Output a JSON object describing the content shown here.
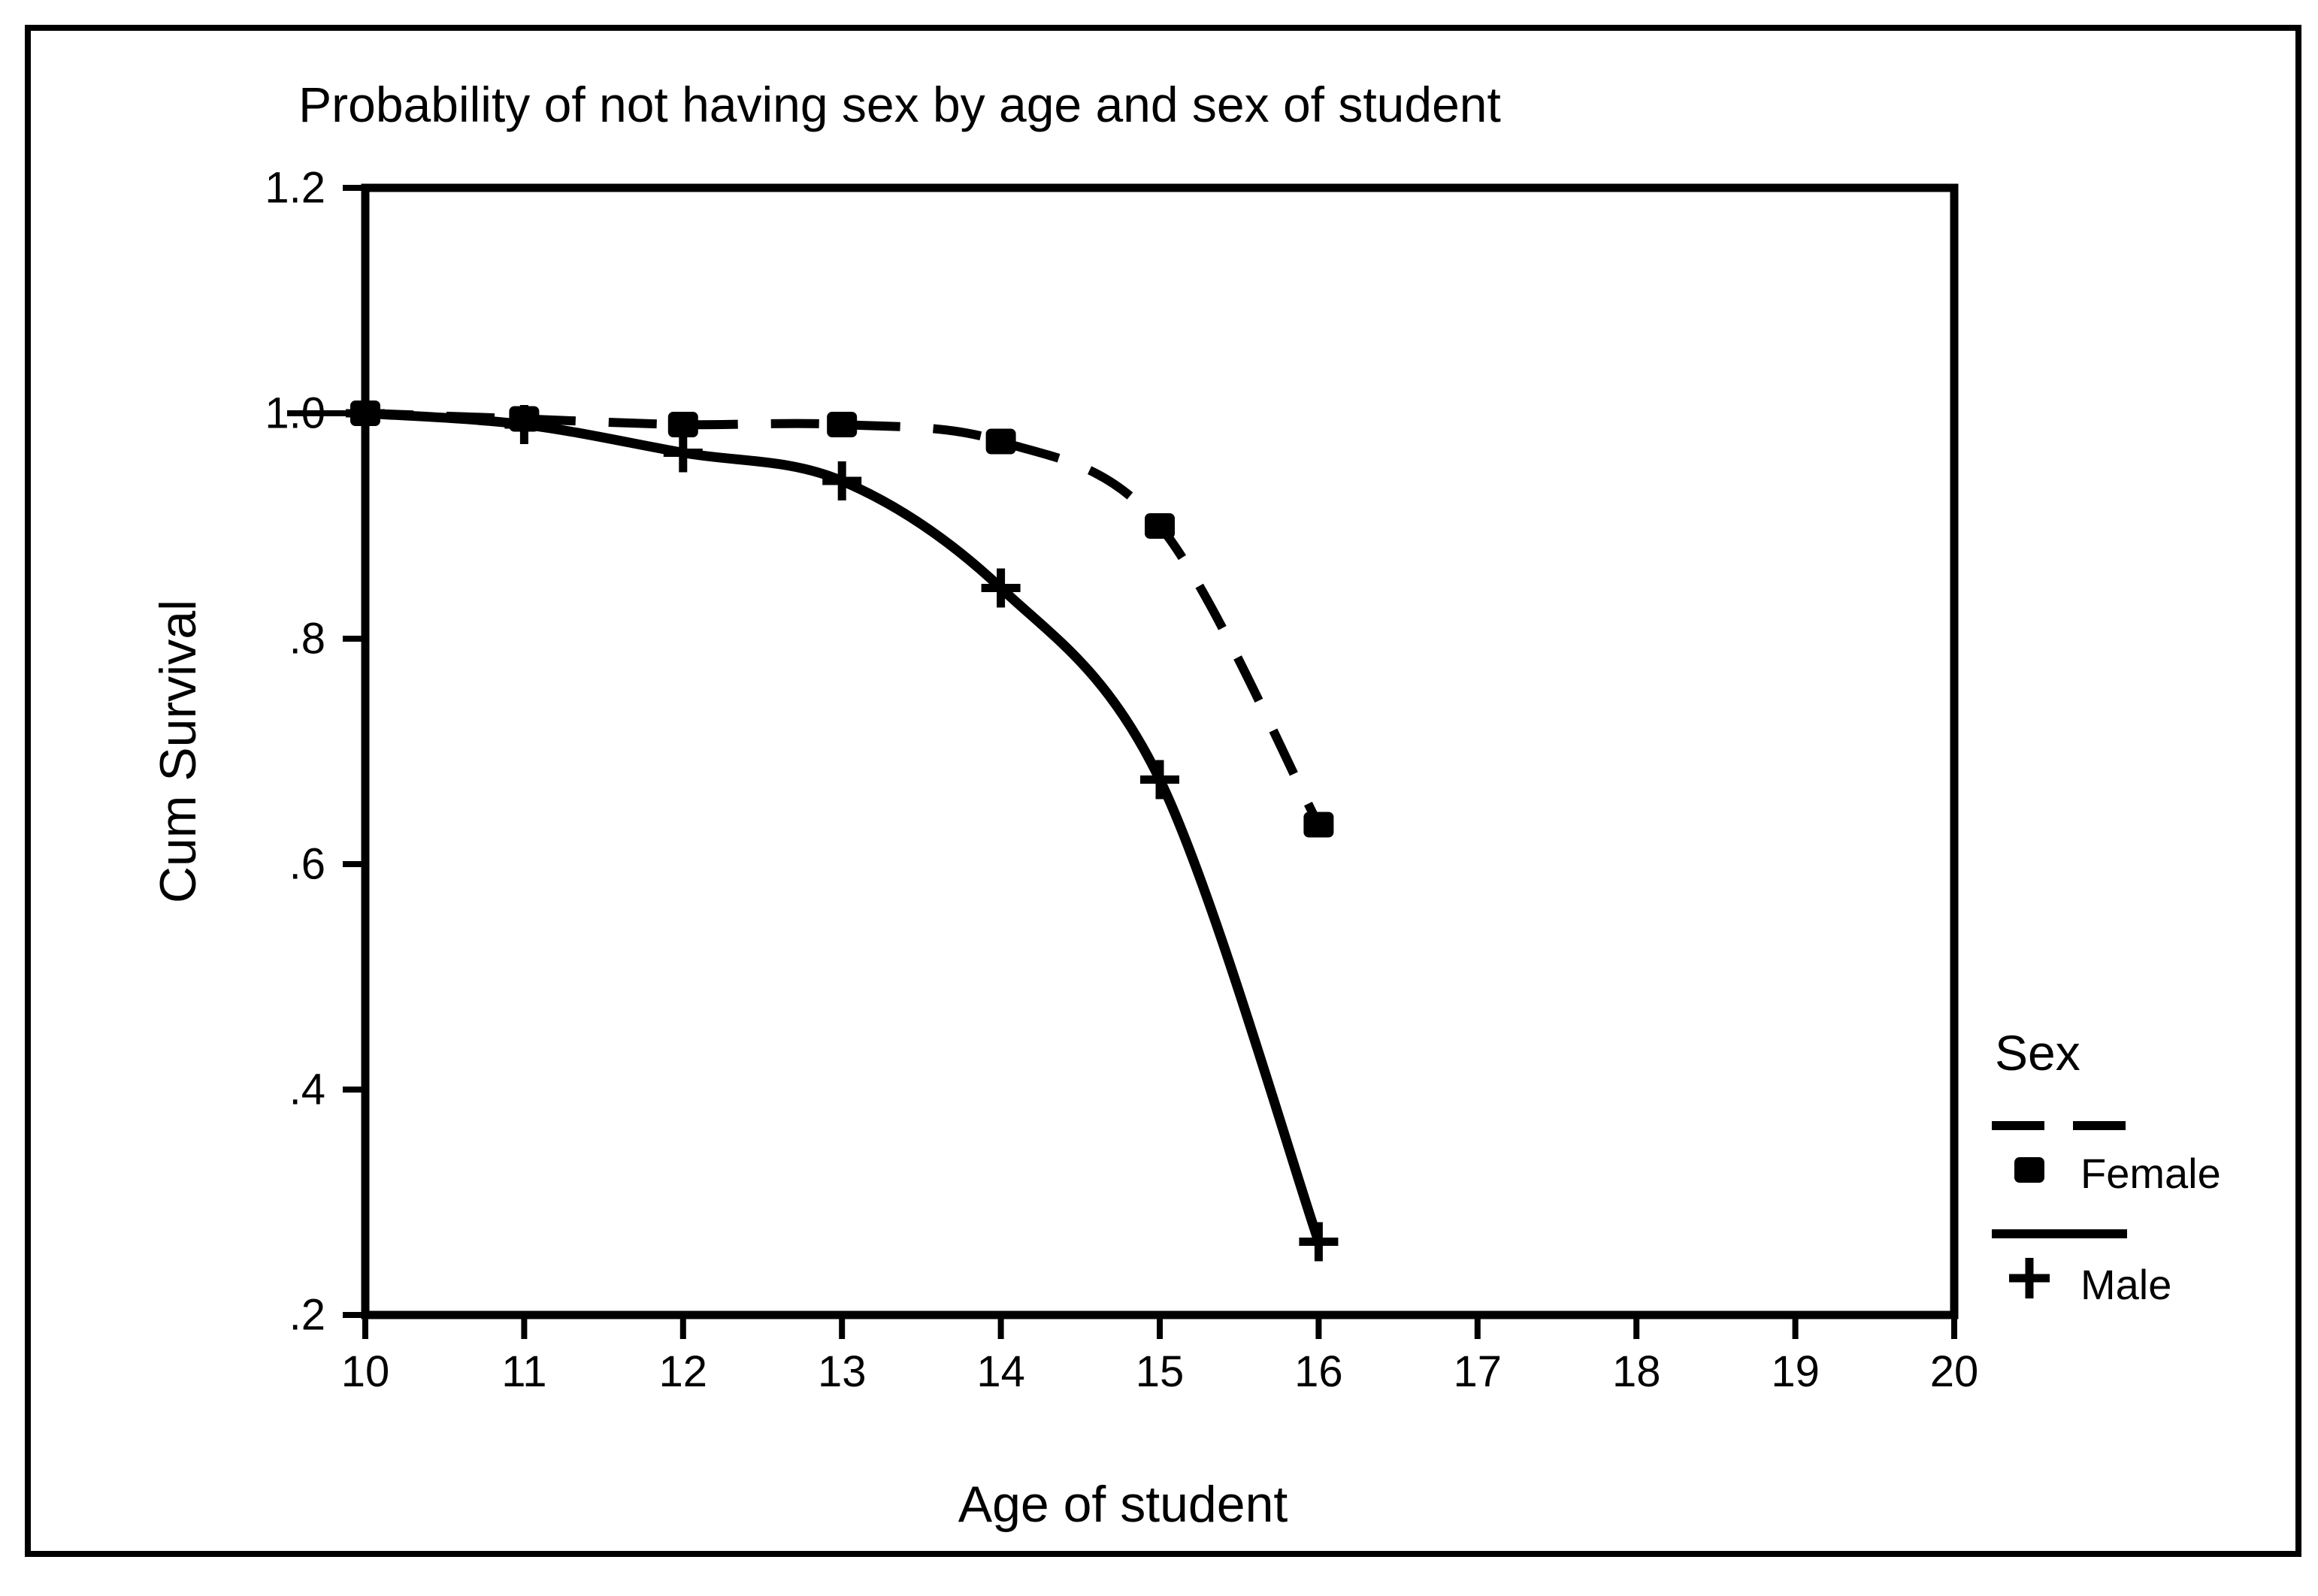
{
  "colors": {
    "ink": "#000000",
    "background": "#ffffff"
  },
  "chart": {
    "title": "Probability of not having sex by age and sex of student",
    "y_axis_label": "Cum Survival",
    "x_axis_label": "Age of student",
    "legend": {
      "title": "Sex",
      "items": [
        {
          "label": "Female",
          "marker": "filled-square",
          "line": "dashed"
        },
        {
          "label": "Male",
          "marker": "plus",
          "line": "solid"
        }
      ]
    }
  },
  "chart_data": {
    "type": "line",
    "title": "Probability of not having sex by age and sex of student",
    "xlabel": "Age of student",
    "ylabel": "Cum Survival",
    "x": [
      10,
      11,
      12,
      13,
      14,
      15,
      16
    ],
    "series": [
      {
        "name": "Female",
        "line": "dashed",
        "marker": "square",
        "values": [
          1.0,
          0.995,
          0.99,
          0.99,
          0.975,
          0.9,
          0.635
        ]
      },
      {
        "name": "Male",
        "line": "solid",
        "marker": "plus",
        "values": [
          1.0,
          0.99,
          0.965,
          0.94,
          0.845,
          0.675,
          0.265
        ]
      }
    ],
    "xlim": [
      10,
      20
    ],
    "ylim": [
      0.2,
      1.2
    ],
    "x_ticks": [
      {
        "label": "10",
        "value": 10
      },
      {
        "label": "11",
        "value": 11
      },
      {
        "label": "12",
        "value": 12
      },
      {
        "label": "13",
        "value": 13
      },
      {
        "label": "14",
        "value": 14
      },
      {
        "label": "15",
        "value": 15
      },
      {
        "label": "16",
        "value": 16
      },
      {
        "label": "17",
        "value": 17
      },
      {
        "label": "18",
        "value": 18
      },
      {
        "label": "19",
        "value": 19
      },
      {
        "label": "20",
        "value": 20
      }
    ],
    "y_ticks": [
      {
        "label": "1.2",
        "value": 1.2
      },
      {
        "label": "1.0",
        "value": 1.0,
        "long_tick": true
      },
      {
        "label": ".8",
        "value": 0.8
      },
      {
        "label": ".6",
        "value": 0.6
      },
      {
        "label": ".4",
        "value": 0.4
      },
      {
        "label": ".2",
        "value": 0.2
      }
    ],
    "grid": false,
    "legend_position": "right-outside"
  }
}
